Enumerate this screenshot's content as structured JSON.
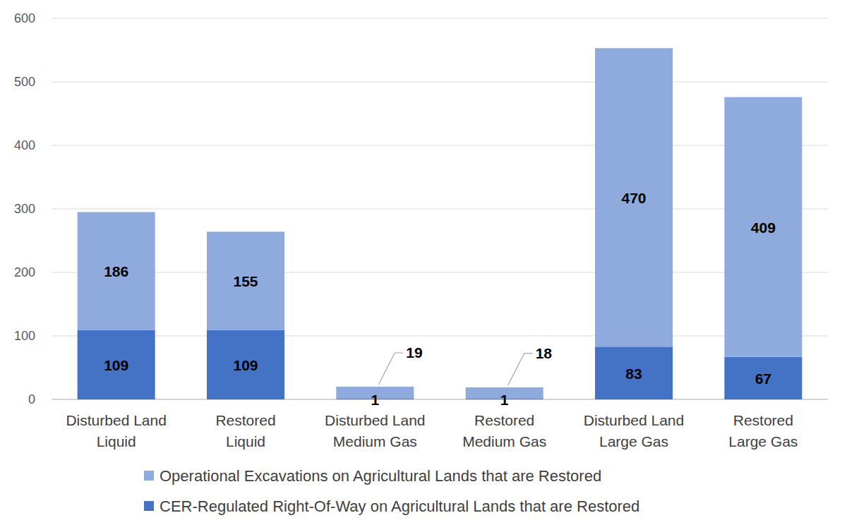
{
  "chart_data": {
    "type": "bar",
    "stacked": true,
    "data_labels": true,
    "grid": true,
    "legend": "bottom",
    "categories": [
      "Disturbed Land\nLiquid",
      "Restored\nLiquid",
      "Disturbed Land\nMedium Gas",
      "Restored\nMedium Gas",
      "Disturbed Land\nLarge Gas",
      "Restored\nLarge Gas"
    ],
    "series": [
      {
        "name": "CER-Regulated Right-Of-Way on Agricultural Lands that are Restored",
        "color": "#4472c4",
        "values": [
          109,
          109,
          1,
          1,
          83,
          67
        ]
      },
      {
        "name": "Operational Excavations on Agricultural Lands that are Restored",
        "color": "#8faadc",
        "values": [
          186,
          155,
          19,
          18,
          470,
          409
        ]
      }
    ],
    "ylim": [
      0,
      600
    ],
    "yticks": [
      0,
      100,
      200,
      300,
      400,
      500,
      600
    ]
  }
}
